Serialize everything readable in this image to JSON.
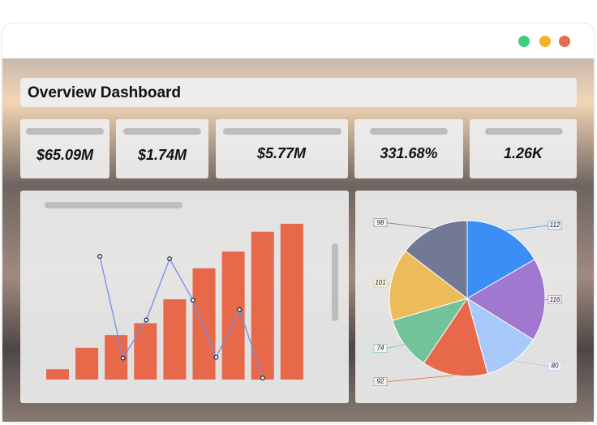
{
  "header": {
    "title": "Overview Dashboard"
  },
  "kpis": [
    {
      "value": "$65.09M"
    },
    {
      "value": "$1.74M"
    },
    {
      "value": "$5.77M"
    },
    {
      "value": "331.68%"
    },
    {
      "value": "1.26K"
    }
  ],
  "chart_data": [
    {
      "type": "bar",
      "values": [
        13,
        40,
        56,
        71,
        101,
        140,
        161,
        186,
        196
      ],
      "color": "#e8684a",
      "ylim": [
        0,
        200
      ]
    },
    {
      "type": "line",
      "values": [
        155,
        27,
        75,
        152,
        100,
        28,
        88,
        2
      ],
      "color": "#6f8ef0",
      "ylim": [
        0,
        200
      ]
    },
    {
      "type": "pie",
      "values": [
        112,
        116,
        80,
        92,
        74,
        101,
        98
      ],
      "colors": [
        "#3a8ef6",
        "#a078d0",
        "#a8cafa",
        "#e8684a",
        "#72c29a",
        "#ecbc5a",
        "#727996"
      ]
    }
  ]
}
